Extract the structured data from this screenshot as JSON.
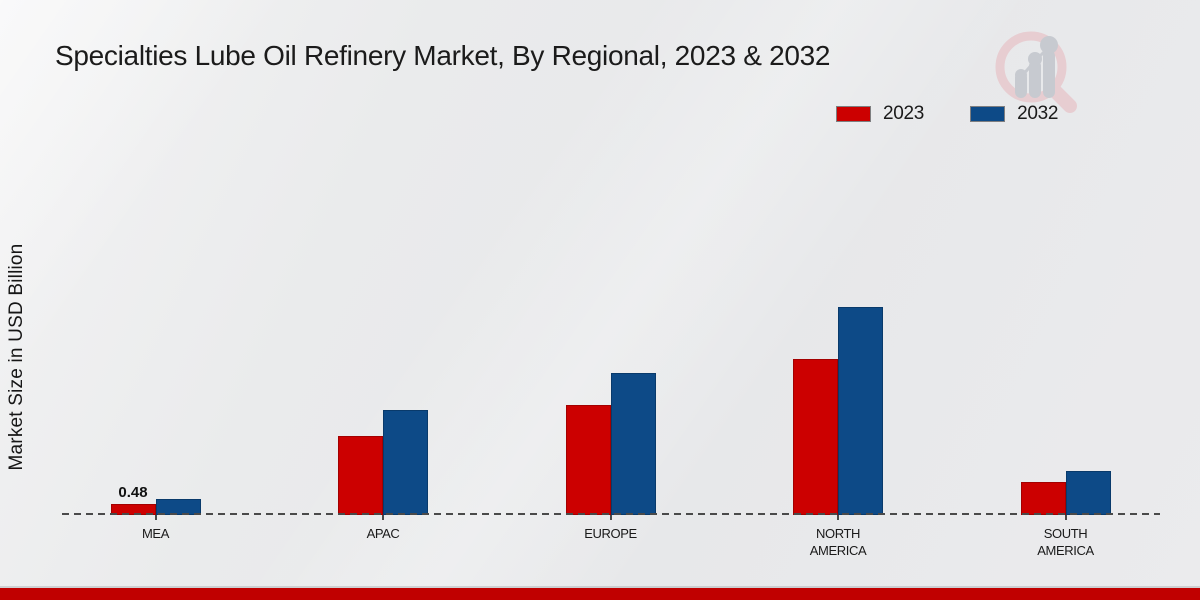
{
  "title": "Specialties Lube Oil Refinery Market, By Regional, 2023 & 2032",
  "ylabel": "Market Size in USD Billion",
  "colors": {
    "series_2023": "#cc0000",
    "series_2023_border": "#a30000",
    "series_2032": "#0d4a87",
    "series_2032_border": "#093a6b",
    "footer_band": "#c00000",
    "dash_line": "#4a4a4a",
    "text": "#1a1a1a",
    "logo_ring": "#e7cdd1",
    "logo_bars": "#c7cad0"
  },
  "logo_name": "magnifier-bar-chart-watermark",
  "chart_data": {
    "type": "bar",
    "categories": [
      "MEA",
      "APAC",
      "EUROPE",
      "NORTH AMERICA",
      "SOUTH AMERICA"
    ],
    "series": [
      {
        "name": "2023",
        "color": "#cc0000",
        "values": [
          0.48,
          3.45,
          4.8,
          6.8,
          1.45
        ]
      },
      {
        "name": "2032",
        "color": "#0d4a87",
        "values": [
          0.7,
          4.6,
          6.2,
          9.1,
          1.9
        ]
      }
    ],
    "data_labels": [
      {
        "series_index": 0,
        "category_index": 0,
        "text": "0.48"
      }
    ],
    "title": "Specialties Lube Oil Refinery Market, By Regional, 2023 & 2032",
    "xlabel": "",
    "ylabel": "Market Size in USD Billion",
    "ylim": [
      0,
      10
    ],
    "grid": false,
    "axis_style": "dashed-baseline-only",
    "legend_position": "top-right"
  }
}
